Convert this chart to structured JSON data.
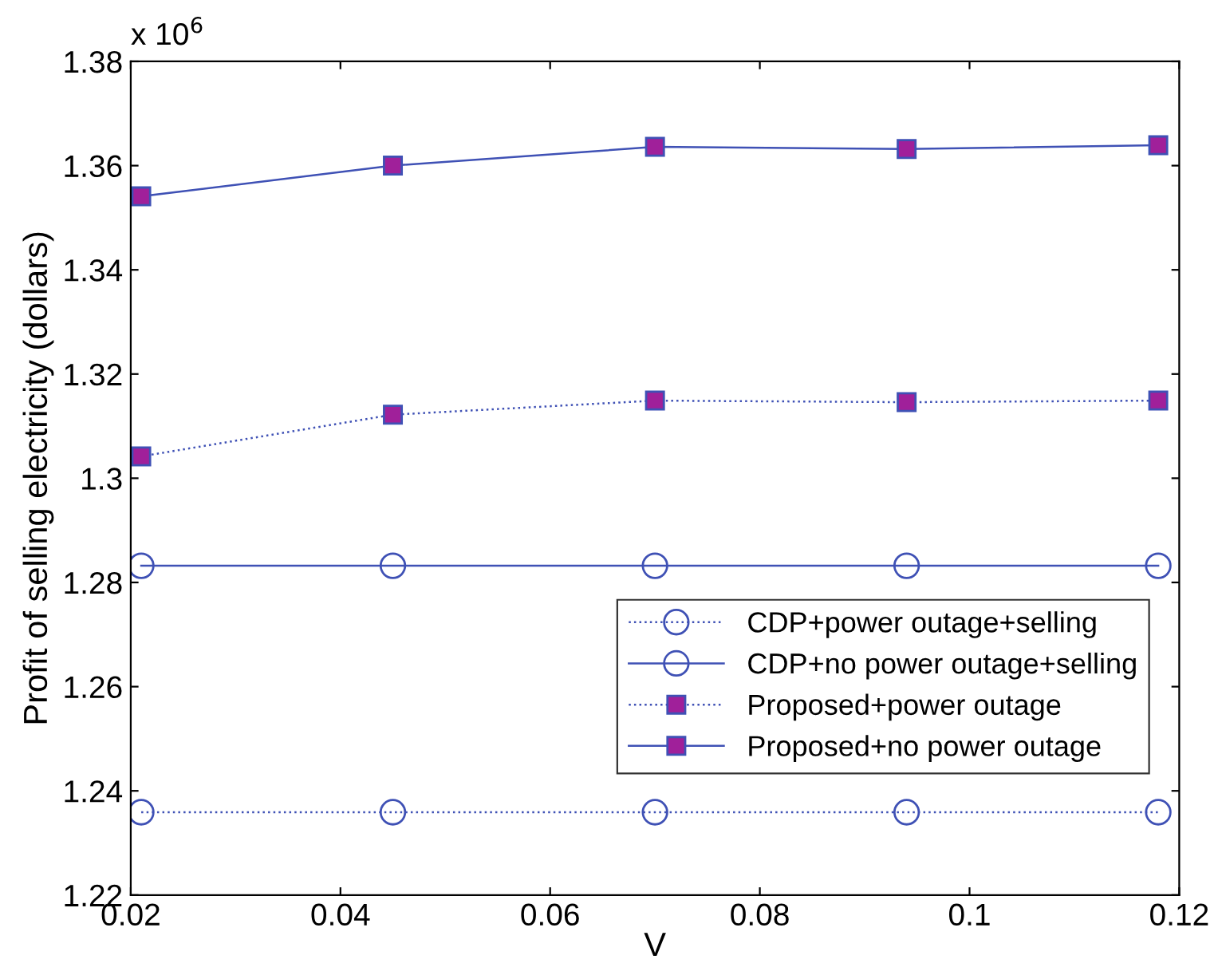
{
  "chart_data": {
    "type": "line",
    "xlabel": "V",
    "ylabel": "Profit of selling electricity (dollars)",
    "annotations": [
      "x 10$^{6}$"
    ],
    "x": [
      0.021,
      0.045,
      0.07,
      0.094,
      0.118
    ],
    "series": [
      {
        "name": "CDP+power outage+selling",
        "color": "#3f51b5",
        "marker": "circle",
        "line_style": "dotted",
        "values": [
          1.2359,
          1.2359,
          1.2359,
          1.2359,
          1.2359
        ]
      },
      {
        "name": "CDP+no power outage+selling",
        "color": "#3f51b5",
        "marker": "circle",
        "line_style": "solid",
        "values": [
          1.2832,
          1.2832,
          1.2832,
          1.2832,
          1.2832
        ]
      },
      {
        "name": "Proposed+power outage",
        "color": "#3f51b5",
        "marker": "square",
        "line_style": "dotted",
        "values": [
          1.3042,
          1.3122,
          1.3149,
          1.3146,
          1.3149
        ]
      },
      {
        "name": "Proposed+no power outage",
        "color": "#3f51b5",
        "marker": "square",
        "line_style": "solid",
        "values": [
          1.3541,
          1.36,
          1.3636,
          1.3632,
          1.3639
        ]
      }
    ],
    "xlim": [
      0.02,
      0.12
    ],
    "xticks": [
      0.02,
      0.04,
      0.06,
      0.08,
      0.1,
      0.12
    ],
    "ylim": [
      1.22,
      1.38
    ],
    "yticks": [
      1.22,
      1.24,
      1.26,
      1.28,
      1.3,
      1.32,
      1.34,
      1.36,
      1.38
    ],
    "grid": false,
    "legend": "right"
  }
}
